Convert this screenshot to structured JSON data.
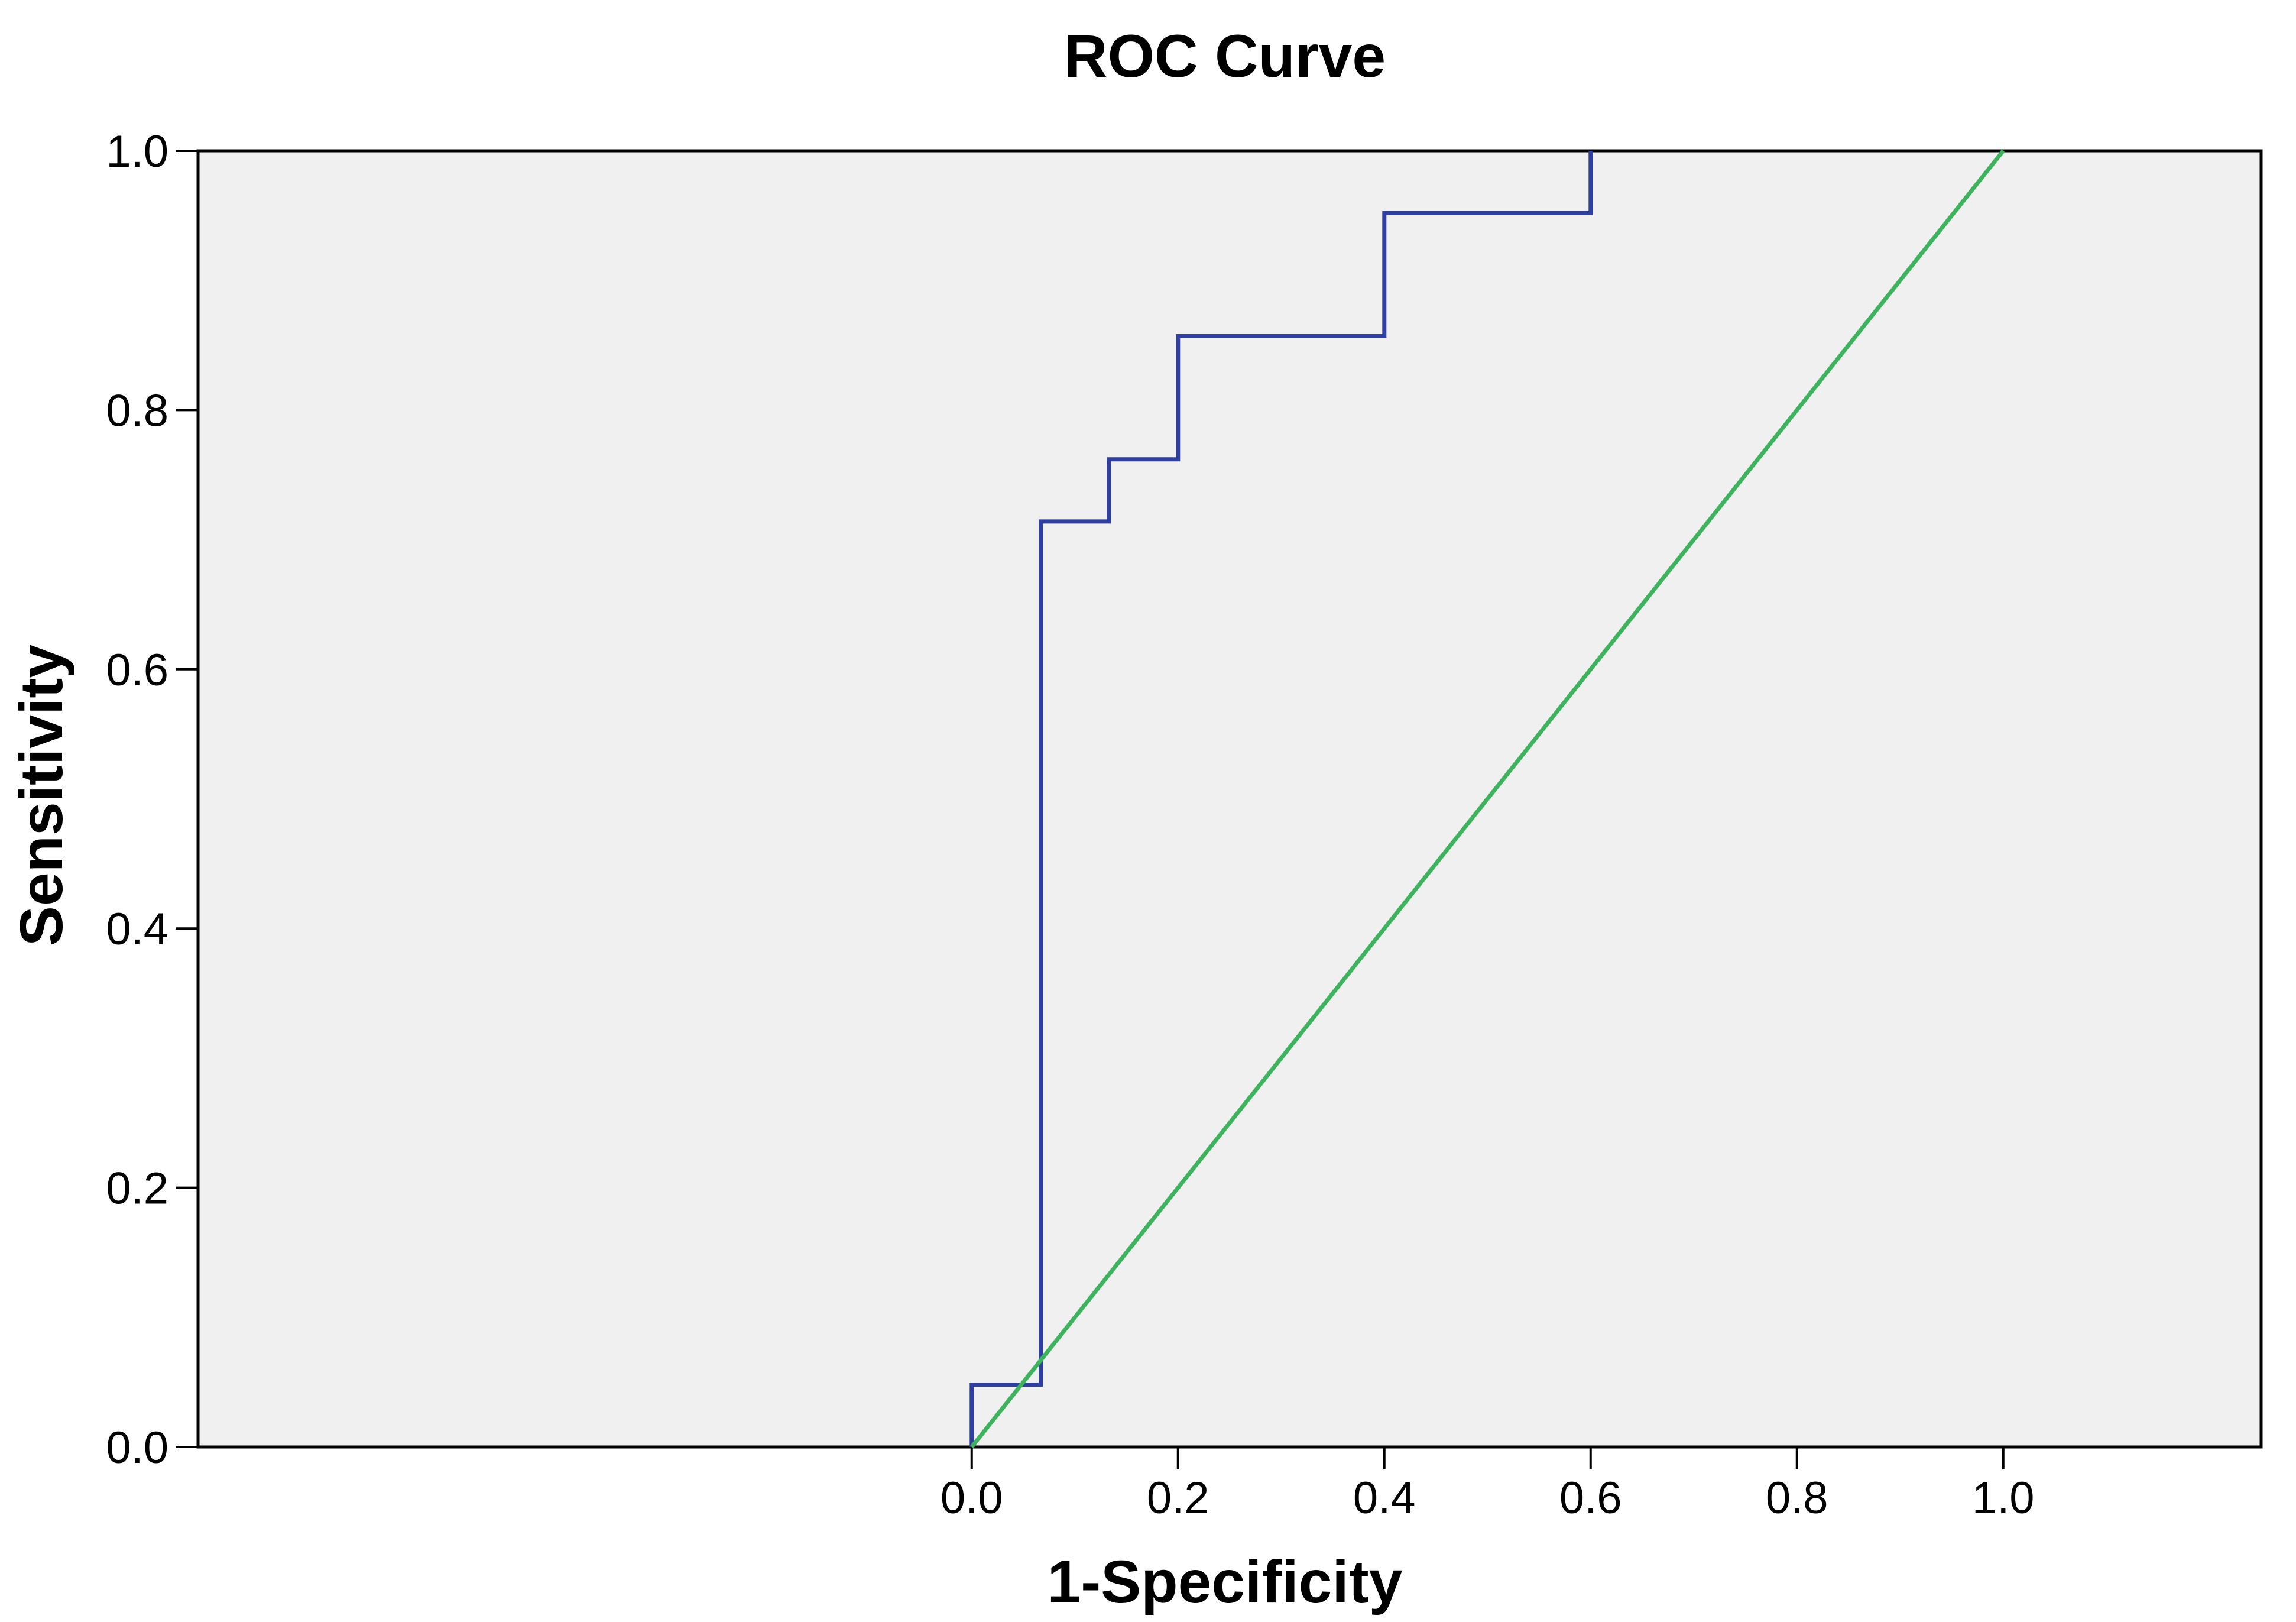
{
  "chart_data": {
    "type": "line",
    "title": "ROC Curve",
    "xlabel": "1-Specificity",
    "ylabel": "Sensitivity",
    "xlim": [
      -0.75,
      1.25
    ],
    "ylim": [
      0,
      1
    ],
    "x_ticks": [
      "0.0",
      "0.2",
      "0.4",
      "0.6",
      "0.8",
      "1.0"
    ],
    "y_ticks": [
      "0.0",
      "0.2",
      "0.4",
      "0.6",
      "0.8",
      "1.0"
    ],
    "grid": false,
    "plot_background": "#f0f0f0",
    "series": [
      {
        "color": "#2f3f9f",
        "step": true,
        "x": [
          0.0,
          0.0,
          0.067,
          0.067,
          0.133,
          0.133,
          0.2,
          0.2,
          0.4,
          0.4,
          0.6,
          0.6
        ],
        "y": [
          0.0,
          0.048,
          0.048,
          0.714,
          0.714,
          0.762,
          0.762,
          0.857,
          0.857,
          0.952,
          0.952,
          1.0
        ]
      },
      {
        "color": "#3cb35c",
        "x": [
          0.0,
          1.0
        ],
        "y": [
          0.0,
          1.0
        ]
      }
    ]
  }
}
